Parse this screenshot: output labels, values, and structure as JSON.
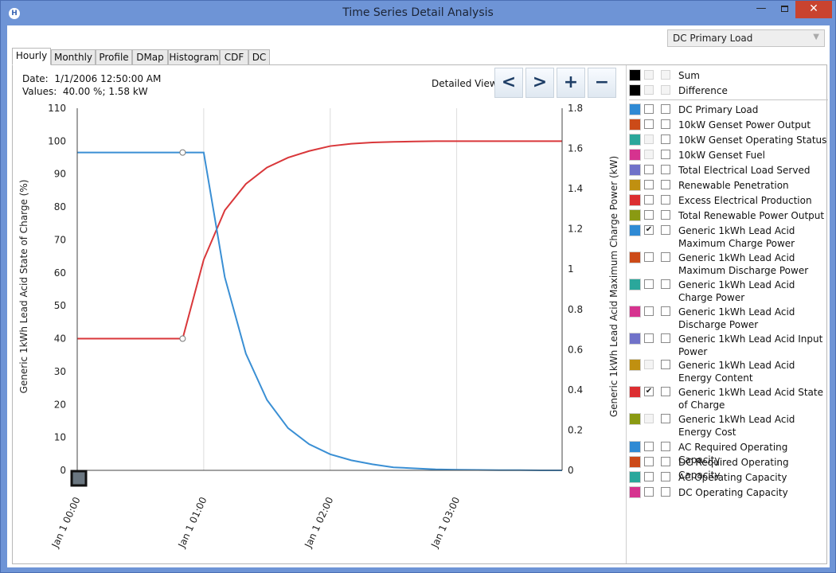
{
  "window": {
    "title": "Time Series Detail Analysis",
    "icon": "app-icon",
    "min": "—",
    "close": "✕"
  },
  "dropdown": {
    "selected": "DC Primary Load"
  },
  "tabs": [
    "Hourly",
    "Monthly",
    "Profile",
    "DMap",
    "Histogram",
    "CDF",
    "DC"
  ],
  "info": {
    "date_label": "Date:",
    "date_value": "1/1/2006 12:50:00 AM",
    "values_label": "Values:",
    "values_value": "40.00 %; 1.58 kW"
  },
  "detailed_view": {
    "label": "Detailed View",
    "prev": "<",
    "next": ">",
    "zoom_in": "+",
    "zoom_out": "−"
  },
  "chart_data": {
    "type": "line",
    "xlabel": "",
    "ylabel_left": "Generic 1kWh Lead Acid State of Charge (%)",
    "ylabel_right": "Generic 1kWh Lead Acid Maximum Charge Power (kW)",
    "x_ticks": [
      "Jan 1 00:00",
      "Jan 1 01:00",
      "Jan 1 02:00",
      "Jan 1 03:00"
    ],
    "x_minutes": [
      0,
      10,
      20,
      30,
      40,
      50,
      60,
      70,
      80,
      90,
      100,
      110,
      120,
      130,
      140,
      150,
      160,
      170,
      180,
      190,
      200,
      210,
      220,
      230
    ],
    "ylim_left": [
      0,
      110
    ],
    "ylim_right": [
      0,
      1.8
    ],
    "yticks_left": [
      "110",
      "100",
      "90",
      "80",
      "70",
      "60",
      "50",
      "40",
      "30",
      "20",
      "10",
      "0"
    ],
    "yticks_right": [
      "1.8",
      "1.6",
      "1.4",
      "1.2",
      "1",
      "0.8",
      "0.6",
      "0.4",
      "0.2",
      "0"
    ],
    "grid": "vertical",
    "series": [
      {
        "name": "Generic 1kWh Lead Acid State of Charge",
        "axis": "left",
        "color": "#d9373a",
        "values": [
          40,
          40,
          40,
          40,
          40,
          40,
          64,
          79,
          87,
          92,
          95,
          97,
          98.5,
          99.2,
          99.6,
          99.8,
          99.9,
          100,
          100,
          100,
          100,
          100,
          100,
          100
        ]
      },
      {
        "name": "Generic 1kWh Lead Acid Maximum Charge Power",
        "axis": "right",
        "color": "#3a8fd4",
        "values": [
          1.58,
          1.58,
          1.58,
          1.58,
          1.58,
          1.58,
          1.58,
          0.96,
          0.58,
          0.35,
          0.21,
          0.13,
          0.08,
          0.05,
          0.03,
          0.015,
          0.01,
          0.005,
          0.003,
          0.002,
          0.001,
          0.001,
          0,
          0
        ]
      }
    ],
    "markers": [
      {
        "series": 0,
        "x_minutes": 50
      },
      {
        "series": 1,
        "x_minutes": 50
      }
    ]
  },
  "legend": {
    "top_items": [
      {
        "label": "Sum",
        "color": "#000000"
      },
      {
        "label": "Difference",
        "color": "#000000"
      }
    ],
    "items": [
      {
        "label": "DC Primary Load",
        "color": "#2f8ad4",
        "checked": false
      },
      {
        "label": "10kW Genset Power Output",
        "color": "#cc4a18",
        "checked": false
      },
      {
        "label": "10kW Genset Operating Status",
        "color": "#2aa79b",
        "checked": false,
        "disabled": true
      },
      {
        "label": "10kW Genset Fuel",
        "color": "#d6338f",
        "checked": false,
        "disabled": true
      },
      {
        "label": "Total Electrical Load Served",
        "color": "#7072c9",
        "checked": false
      },
      {
        "label": "Renewable Penetration",
        "color": "#c09010",
        "checked": false
      },
      {
        "label": "Excess Electrical Production",
        "color": "#dc2e31",
        "checked": false
      },
      {
        "label": "Total Renewable Power Output",
        "color": "#8a9a12",
        "checked": false
      },
      {
        "label": "Generic 1kWh Lead Acid Maximum Charge Power",
        "color": "#2f8ad4",
        "checked": true
      },
      {
        "label": "Generic 1kWh Lead Acid Maximum Discharge Power",
        "color": "#cc4a18",
        "checked": false
      },
      {
        "label": "Generic 1kWh Lead Acid Charge Power",
        "color": "#2aa79b",
        "checked": false
      },
      {
        "label": "Generic 1kWh Lead Acid Discharge Power",
        "color": "#d6338f",
        "checked": false
      },
      {
        "label": "Generic 1kWh Lead Acid Input Power",
        "color": "#7072c9",
        "checked": false
      },
      {
        "label": "Generic 1kWh Lead Acid Energy Content",
        "color": "#c09010",
        "checked": false,
        "disabled": true
      },
      {
        "label": "Generic 1kWh Lead Acid State of Charge",
        "color": "#dc2e31",
        "checked": true
      },
      {
        "label": "Generic 1kWh Lead Acid Energy Cost",
        "color": "#8a9a12",
        "checked": false,
        "disabled": true
      },
      {
        "label": "AC Required Operating Capacity",
        "color": "#2f8ad4",
        "checked": false
      },
      {
        "label": "DC Required Operating Capacity",
        "color": "#cc4a18",
        "checked": false
      },
      {
        "label": "AC Operating Capacity",
        "color": "#2aa79b",
        "checked": false
      },
      {
        "label": "DC Operating Capacity",
        "color": "#d6338f",
        "checked": false
      }
    ]
  }
}
